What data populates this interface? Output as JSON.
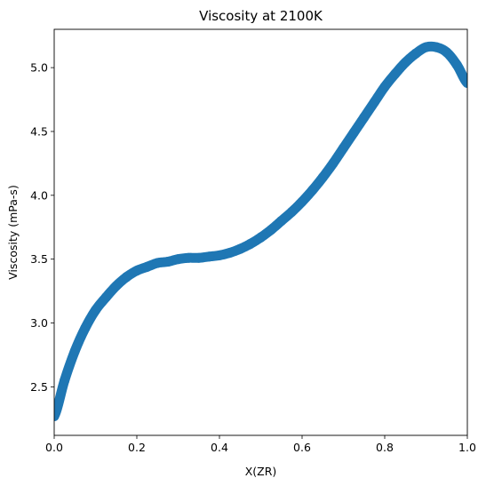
{
  "chart_data": {
    "type": "scatter",
    "title": "Viscosity at 2100K",
    "xlabel": "X(ZR)",
    "ylabel": "Viscosity (mPa-s)",
    "xlim": [
      0.0,
      1.0
    ],
    "ylim": [
      2.12,
      5.3
    ],
    "xticks": [
      0.0,
      0.2,
      0.4,
      0.6,
      0.8,
      1.0
    ],
    "xtick_labels": [
      "0.0",
      "0.2",
      "0.4",
      "0.6",
      "0.8",
      "1.0"
    ],
    "yticks": [
      2.5,
      3.0,
      3.5,
      4.0,
      4.5,
      5.0
    ],
    "ytick_labels": [
      "2.5",
      "3.0",
      "3.5",
      "4.0",
      "4.5",
      "5.0"
    ],
    "grid": false,
    "legend": "none",
    "series": [
      {
        "color": "#1f77b4",
        "x": [
          0.0,
          0.025,
          0.05,
          0.075,
          0.1,
          0.125,
          0.15,
          0.175,
          0.2,
          0.225,
          0.25,
          0.275,
          0.3,
          0.325,
          0.35,
          0.375,
          0.4,
          0.425,
          0.45,
          0.475,
          0.5,
          0.525,
          0.55,
          0.575,
          0.6,
          0.625,
          0.65,
          0.675,
          0.7,
          0.725,
          0.75,
          0.775,
          0.8,
          0.825,
          0.85,
          0.875,
          0.9,
          0.925,
          0.95,
          0.975,
          1.0
        ],
        "y": [
          2.27,
          2.55,
          2.78,
          2.96,
          3.1,
          3.2,
          3.29,
          3.36,
          3.41,
          3.44,
          3.47,
          3.48,
          3.5,
          3.51,
          3.51,
          3.52,
          3.53,
          3.55,
          3.58,
          3.62,
          3.67,
          3.73,
          3.8,
          3.87,
          3.95,
          4.04,
          4.14,
          4.25,
          4.37,
          4.49,
          4.61,
          4.73,
          4.85,
          4.95,
          5.04,
          5.11,
          5.16,
          5.16,
          5.12,
          5.02,
          4.88
        ]
      }
    ]
  }
}
